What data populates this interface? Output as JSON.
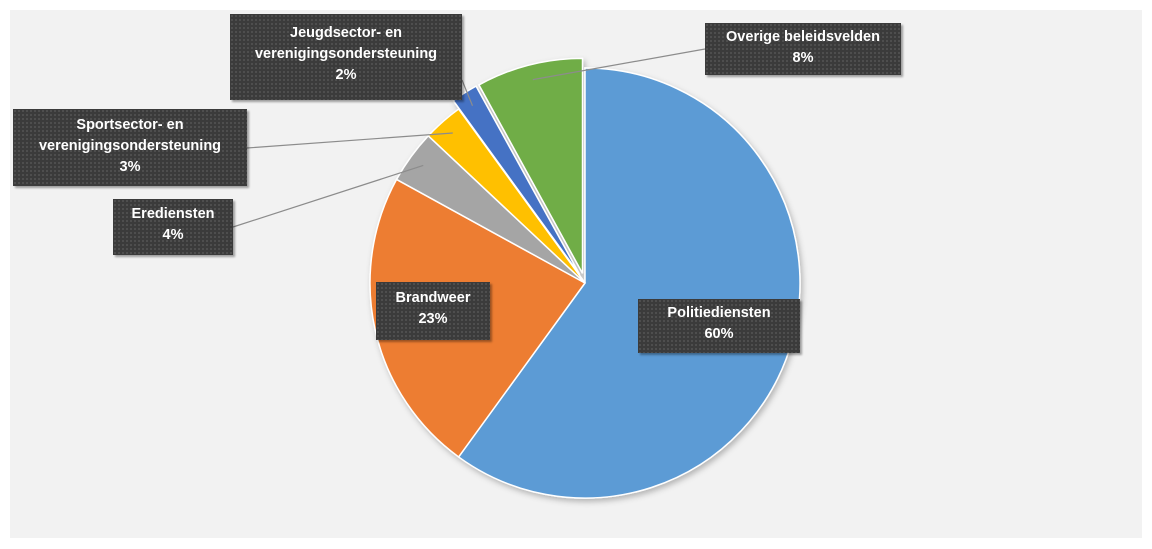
{
  "chart_data": {
    "type": "pie",
    "start_angle_deg": 0,
    "direction": "clockwise",
    "title": "",
    "legend": "none",
    "slices": [
      {
        "category": "Politiediensten",
        "value": 60,
        "label": "60%",
        "color": "#5b9bd5",
        "exploded": false
      },
      {
        "category": "Brandweer",
        "value": 23,
        "label": "23%",
        "color": "#ed7d31",
        "exploded": false
      },
      {
        "category": "Erediensten",
        "value": 4,
        "label": "4%",
        "color": "#a5a5a5",
        "exploded": false
      },
      {
        "category": "Sportsector- en verenigingsondersteuning",
        "value": 3,
        "label": "3%",
        "color": "#ffc000",
        "exploded": false
      },
      {
        "category": "Jeugdsector- en verenigingsondersteuning",
        "value": 2,
        "label": "2%",
        "color": "#4472c4",
        "exploded": true
      },
      {
        "category": "Overige beleidsvelden",
        "value": 8,
        "label": "8%",
        "color": "#70ad47",
        "exploded": true
      }
    ],
    "label_lines": [
      [
        "Politiediensten"
      ],
      [
        "Brandweer"
      ],
      [
        "Erediensten"
      ],
      [
        "Sportsector- en",
        "verenigingsondersteuning"
      ],
      [
        "Jeugdsector- en",
        "verenigingsondersteuning"
      ],
      [
        "Overige beleidsvelden"
      ]
    ]
  }
}
